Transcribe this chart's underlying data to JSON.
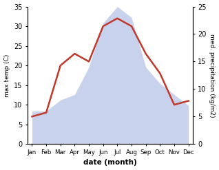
{
  "months": [
    "Jan",
    "Feb",
    "Mar",
    "Apr",
    "May",
    "Jun",
    "Jul",
    "Aug",
    "Sep",
    "Oct",
    "Nov",
    "Dec"
  ],
  "temperature": [
    7,
    8,
    20,
    23,
    21,
    30,
    32,
    30,
    23,
    18,
    10,
    11
  ],
  "precipitation_kg": [
    6,
    6,
    8,
    9,
    14,
    22,
    25,
    23,
    14,
    11,
    9,
    7
  ],
  "temp_color": "#c0392b",
  "precip_fill_color": "#b8c4e8",
  "temp_ylim": [
    0,
    35
  ],
  "precip_ylim": [
    0,
    25
  ],
  "left_yticks": [
    0,
    5,
    10,
    15,
    20,
    25,
    30,
    35
  ],
  "right_yticks": [
    0,
    5,
    10,
    15,
    20,
    25
  ],
  "xlabel": "date (month)",
  "ylabel_left": "max temp (C)",
  "ylabel_right": "med. precipitation (kg/m2)"
}
